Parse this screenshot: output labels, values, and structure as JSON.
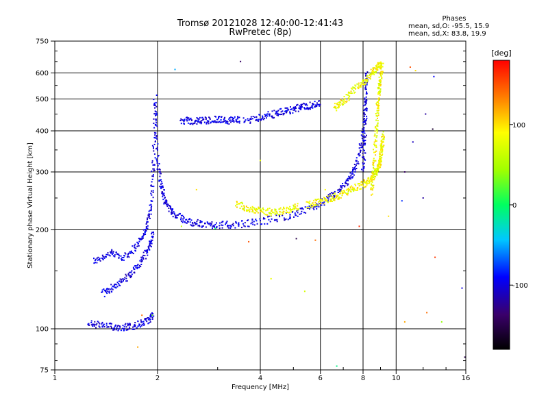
{
  "chart_data": {
    "type": "scatter",
    "title": "Tromsø 20121028 12:40:00-12:41:43",
    "subtitle": "RwPretec (8p)",
    "xlabel": "Frequency [MHz]",
    "ylabel": "Stationary phase Virtual Height [km]",
    "xscale": "log",
    "yscale": "log",
    "xlim": [
      1,
      16
    ],
    "ylim": [
      75,
      750
    ],
    "xticks": [
      1,
      2,
      4,
      6,
      8,
      10,
      16
    ],
    "xtick_labels": [
      "1",
      "2",
      "4",
      "6",
      "8",
      "10",
      "16"
    ],
    "yticks": [
      75,
      100,
      200,
      300,
      400,
      500,
      600,
      750
    ],
    "ytick_labels": [
      "75",
      "100",
      "200",
      "300",
      "400",
      "500",
      "600",
      "750"
    ],
    "grid": true,
    "colorbar": {
      "label": "[deg]",
      "range": [
        -180,
        180
      ],
      "ticks": [
        -100,
        0,
        100
      ],
      "tick_labels": [
        "-100",
        "0",
        "100"
      ]
    },
    "phase_stats": {
      "header": "Phases",
      "o_line": "mean, sd,O: -95.5, 15.9",
      "x_line": "mean, sd,X:  83.8, 19.9"
    },
    "series": [
      {
        "mode": "O",
        "segments": [
          {
            "f": [
              1.3,
              1.45,
              1.6,
              1.75,
              1.85,
              1.92,
              1.95,
              1.97
            ],
            "h": [
              160,
              170,
              165,
              180,
              200,
              240,
              330,
              520
            ]
          },
          {
            "f": [
              1.38,
              1.5,
              1.65,
              1.78,
              1.88,
              1.95
            ],
            "h": [
              128,
              135,
              145,
              158,
              175,
              195
            ]
          },
          {
            "f": [
              1.25,
              1.4,
              1.55,
              1.7,
              1.85,
              1.95
            ],
            "h": [
              104,
              102,
              101,
              102,
              105,
              110
            ]
          },
          {
            "f": [
              1.97,
              2.0,
              2.05,
              2.12,
              2.25,
              2.45,
              2.7,
              3.0,
              3.4,
              4.0,
              4.8,
              5.5,
              6.2,
              6.8,
              7.3,
              7.7,
              8.0,
              8.15
            ],
            "h": [
              480,
              330,
              270,
              240,
              222,
              212,
              208,
              207,
              207,
              212,
              220,
              230,
              245,
              262,
              285,
              320,
              390,
              520
            ]
          },
          {
            "f": [
              2.35,
              2.55,
              2.75,
              3.0,
              3.25,
              3.5
            ],
            "h": [
              430,
              428,
              430,
              433,
              430,
              432
            ]
          },
          {
            "f": [
              3.6,
              4.0,
              4.4,
              4.8,
              5.2,
              5.6,
              6.0
            ],
            "h": [
              428,
              440,
              450,
              460,
              470,
              478,
              485
            ]
          },
          {
            "f": [
              8.0,
              8.1,
              8.15,
              8.2
            ],
            "h": [
              300,
              380,
              500,
              620
            ]
          }
        ]
      },
      {
        "mode": "X",
        "segments": [
          {
            "f": [
              3.4,
              3.7,
              4.0,
              4.4,
              4.8,
              5.2
            ],
            "h": [
              240,
              232,
              228,
              226,
              230,
              235
            ]
          },
          {
            "f": [
              5.5,
              6.0,
              6.5,
              7.0,
              7.5,
              8.0,
              8.4,
              8.7,
              8.9,
              9.0,
              9.1,
              9.15
            ],
            "h": [
              238,
              245,
              250,
              258,
              266,
              275,
              285,
              298,
              310,
              330,
              360,
              390
            ]
          },
          {
            "f": [
              6.6,
              7.0,
              7.5,
              8.0,
              8.5,
              8.8,
              9.0
            ],
            "h": [
              470,
              490,
              530,
              560,
              600,
              620,
              640
            ]
          },
          {
            "f": [
              8.5,
              8.6,
              8.7,
              8.8,
              8.9,
              9.0,
              9.1
            ],
            "h": [
              260,
              300,
              380,
              450,
              520,
              580,
              640
            ]
          }
        ]
      }
    ],
    "noise_points": [
      {
        "f": 2.25,
        "h": 615,
        "phase": -50
      },
      {
        "f": 3.5,
        "h": 650,
        "phase": -140
      },
      {
        "f": 2.95,
        "h": 202,
        "phase": -5
      },
      {
        "f": 3.7,
        "h": 184,
        "phase": 150
      },
      {
        "f": 2.6,
        "h": 265,
        "phase": 100
      },
      {
        "f": 4.0,
        "h": 325,
        "phase": 80
      },
      {
        "f": 2.35,
        "h": 205,
        "phase": 60
      },
      {
        "f": 4.3,
        "h": 142,
        "phase": 80
      },
      {
        "f": 5.1,
        "h": 188,
        "phase": -150
      },
      {
        "f": 5.4,
        "h": 130,
        "phase": 70
      },
      {
        "f": 5.8,
        "h": 186,
        "phase": 140
      },
      {
        "f": 6.2,
        "h": 265,
        "phase": 90
      },
      {
        "f": 6.7,
        "h": 77,
        "phase": -10
      },
      {
        "f": 7.8,
        "h": 205,
        "phase": 165
      },
      {
        "f": 9.5,
        "h": 220,
        "phase": 100
      },
      {
        "f": 10.6,
        "h": 300,
        "phase": -140
      },
      {
        "f": 10.4,
        "h": 245,
        "phase": -80
      },
      {
        "f": 11.0,
        "h": 625,
        "phase": 150
      },
      {
        "f": 11.2,
        "h": 370,
        "phase": -110
      },
      {
        "f": 12.0,
        "h": 250,
        "phase": -120
      },
      {
        "f": 12.8,
        "h": 405,
        "phase": -160
      },
      {
        "f": 12.9,
        "h": 585,
        "phase": -90
      },
      {
        "f": 13.0,
        "h": 165,
        "phase": 160
      },
      {
        "f": 12.3,
        "h": 112,
        "phase": 140
      },
      {
        "f": 13.6,
        "h": 105,
        "phase": 40
      },
      {
        "f": 15.6,
        "h": 133,
        "phase": -100
      },
      {
        "f": 10.6,
        "h": 105,
        "phase": 120
      },
      {
        "f": 1.8,
        "h": 110,
        "phase": 140
      },
      {
        "f": 1.75,
        "h": 88,
        "phase": 120
      },
      {
        "f": 1.93,
        "h": 110,
        "phase": 30
      },
      {
        "f": 11.4,
        "h": 610,
        "phase": 100
      },
      {
        "f": 12.2,
        "h": 450,
        "phase": -120
      },
      {
        "f": 15.9,
        "h": 82,
        "phase": -150
      }
    ]
  }
}
